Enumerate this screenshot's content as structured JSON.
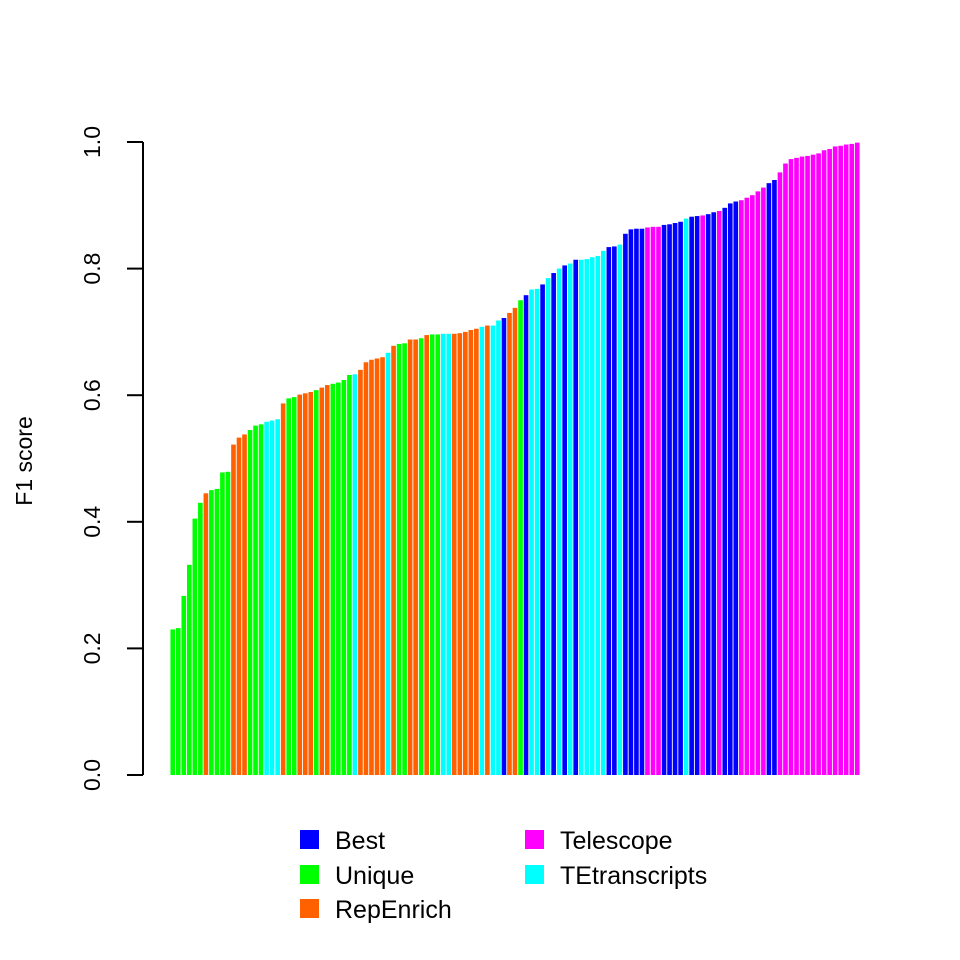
{
  "chart_data": {
    "type": "bar",
    "ylabel": "F1 score",
    "xlabel": "",
    "ylim": [
      0,
      1
    ],
    "yticks": [
      "0.0",
      "0.2",
      "0.4",
      "0.6",
      "0.8",
      "1.0"
    ],
    "legend_position": "bottom",
    "colors": {
      "Best": "#0000ff",
      "Unique": "#00ff00",
      "RepEnrich": "#ff6000",
      "Telescope": "#ff00ff",
      "TEtranscripts": "#00ffff"
    },
    "legend": [
      [
        "Best",
        "Unique",
        "RepEnrich"
      ],
      [
        "Telescope",
        "TEtranscripts"
      ]
    ],
    "bars": [
      [
        "Unique",
        0.23
      ],
      [
        "Unique",
        0.232
      ],
      [
        "Unique",
        0.283
      ],
      [
        "Unique",
        0.332
      ],
      [
        "Unique",
        0.405
      ],
      [
        "Unique",
        0.43
      ],
      [
        "RepEnrich",
        0.445
      ],
      [
        "Unique",
        0.45
      ],
      [
        "Unique",
        0.452
      ],
      [
        "Unique",
        0.478
      ],
      [
        "Unique",
        0.479
      ],
      [
        "RepEnrich",
        0.522
      ],
      [
        "RepEnrich",
        0.533
      ],
      [
        "RepEnrich",
        0.538
      ],
      [
        "Unique",
        0.545
      ],
      [
        "Unique",
        0.552
      ],
      [
        "Unique",
        0.554
      ],
      [
        "TEtranscripts",
        0.558
      ],
      [
        "TEtranscripts",
        0.56
      ],
      [
        "TEtranscripts",
        0.562
      ],
      [
        "RepEnrich",
        0.587
      ],
      [
        "Unique",
        0.595
      ],
      [
        "Unique",
        0.597
      ],
      [
        "RepEnrich",
        0.601
      ],
      [
        "RepEnrich",
        0.603
      ],
      [
        "RepEnrich",
        0.605
      ],
      [
        "Unique",
        0.608
      ],
      [
        "RepEnrich",
        0.612
      ],
      [
        "RepEnrich",
        0.616
      ],
      [
        "Unique",
        0.618
      ],
      [
        "Unique",
        0.62
      ],
      [
        "Unique",
        0.624
      ],
      [
        "Unique",
        0.632
      ],
      [
        "TEtranscripts",
        0.633
      ],
      [
        "RepEnrich",
        0.64
      ],
      [
        "RepEnrich",
        0.652
      ],
      [
        "RepEnrich",
        0.656
      ],
      [
        "RepEnrich",
        0.658
      ],
      [
        "RepEnrich",
        0.66
      ],
      [
        "TEtranscripts",
        0.667
      ],
      [
        "RepEnrich",
        0.678
      ],
      [
        "Unique",
        0.681
      ],
      [
        "Unique",
        0.682
      ],
      [
        "RepEnrich",
        0.688
      ],
      [
        "RepEnrich",
        0.688
      ],
      [
        "Unique",
        0.69
      ],
      [
        "RepEnrich",
        0.695
      ],
      [
        "Unique",
        0.696
      ],
      [
        "Unique",
        0.696
      ],
      [
        "TEtranscripts",
        0.697
      ],
      [
        "TEtranscripts",
        0.697
      ],
      [
        "RepEnrich",
        0.697
      ],
      [
        "RepEnrich",
        0.698
      ],
      [
        "RepEnrich",
        0.7
      ],
      [
        "RepEnrich",
        0.703
      ],
      [
        "RepEnrich",
        0.705
      ],
      [
        "TEtranscripts",
        0.708
      ],
      [
        "RepEnrich",
        0.71
      ],
      [
        "TEtranscripts",
        0.71
      ],
      [
        "TEtranscripts",
        0.718
      ],
      [
        "Best",
        0.722
      ],
      [
        "RepEnrich",
        0.73
      ],
      [
        "RepEnrich",
        0.738
      ],
      [
        "Unique",
        0.75
      ],
      [
        "Best",
        0.758
      ],
      [
        "TEtranscripts",
        0.767
      ],
      [
        "TEtranscripts",
        0.768
      ],
      [
        "Best",
        0.775
      ],
      [
        "TEtranscripts",
        0.785
      ],
      [
        "Best",
        0.793
      ],
      [
        "TEtranscripts",
        0.8
      ],
      [
        "Best",
        0.805
      ],
      [
        "TEtranscripts",
        0.808
      ],
      [
        "Best",
        0.814
      ],
      [
        "TEtranscripts",
        0.814
      ],
      [
        "TEtranscripts",
        0.815
      ],
      [
        "TEtranscripts",
        0.818
      ],
      [
        "TEtranscripts",
        0.82
      ],
      [
        "TEtranscripts",
        0.828
      ],
      [
        "Best",
        0.834
      ],
      [
        "Best",
        0.835
      ],
      [
        "TEtranscripts",
        0.838
      ],
      [
        "Best",
        0.855
      ],
      [
        "Best",
        0.862
      ],
      [
        "Best",
        0.863
      ],
      [
        "Best",
        0.863
      ],
      [
        "Telescope",
        0.865
      ],
      [
        "Telescope",
        0.866
      ],
      [
        "Telescope",
        0.866
      ],
      [
        "Best",
        0.869
      ],
      [
        "Best",
        0.87
      ],
      [
        "Best",
        0.872
      ],
      [
        "Best",
        0.874
      ],
      [
        "TEtranscripts",
        0.879
      ],
      [
        "Best",
        0.882
      ],
      [
        "Best",
        0.883
      ],
      [
        "Telescope",
        0.884
      ],
      [
        "Best",
        0.886
      ],
      [
        "Best",
        0.889
      ],
      [
        "Telescope",
        0.891
      ],
      [
        "Best",
        0.896
      ],
      [
        "Best",
        0.903
      ],
      [
        "Best",
        0.906
      ],
      [
        "Telescope",
        0.908
      ],
      [
        "Telescope",
        0.912
      ],
      [
        "Telescope",
        0.916
      ],
      [
        "Telescope",
        0.922
      ],
      [
        "Telescope",
        0.928
      ],
      [
        "Best",
        0.935
      ],
      [
        "Best",
        0.94
      ],
      [
        "Telescope",
        0.952
      ],
      [
        "Telescope",
        0.966
      ],
      [
        "Telescope",
        0.973
      ],
      [
        "Telescope",
        0.975
      ],
      [
        "Telescope",
        0.977
      ],
      [
        "Telescope",
        0.978
      ],
      [
        "Telescope",
        0.98
      ],
      [
        "Telescope",
        0.982
      ],
      [
        "Telescope",
        0.987
      ],
      [
        "Telescope",
        0.989
      ],
      [
        "Telescope",
        0.993
      ],
      [
        "Telescope",
        0.994
      ],
      [
        "Telescope",
        0.996
      ],
      [
        "Telescope",
        0.997
      ],
      [
        "Telescope",
        0.999
      ]
    ]
  }
}
